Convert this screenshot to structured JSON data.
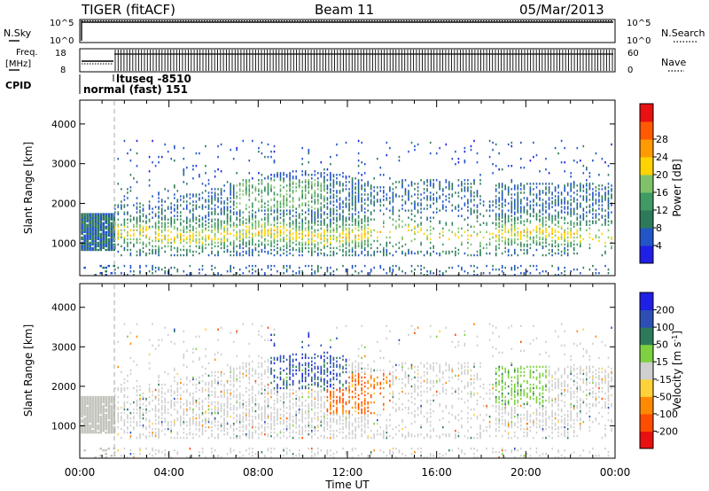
{
  "header": {
    "radar": "TIGER (fitACF)",
    "beam": "Beam 11",
    "date": "05/Mar/2013"
  },
  "panels": {
    "nsky": {
      "label": "N.Sky",
      "tick_top": "10^5",
      "tick_bottom": "10^0",
      "right_label": "N.Search",
      "right_tick_top": "10^5",
      "right_tick_bottom": "10^0"
    },
    "freq": {
      "label_line1": "Freq.",
      "label_line2": "[MHz]",
      "tick_top": "18",
      "tick_bottom": "8",
      "right_label": "Nave",
      "right_tick_top": "60",
      "right_tick_bottom": "0"
    },
    "cpid": {
      "label": "CPID",
      "program1": "normal (fast) 151",
      "program2": "ltuseq -8510"
    }
  },
  "colors": {
    "power_scale": [
      "#1f1fe6",
      "#2255c8",
      "#2d7a5a",
      "#3f9a63",
      "#7fc26a",
      "#ffd400",
      "#ff9a00",
      "#ff5a00",
      "#e81010"
    ],
    "velocity_scale": [
      "#1f1fe6",
      "#2d4fb5",
      "#2d7a5a",
      "#7dd040",
      "#cfcfcf",
      "#ffd23a",
      "#ff8a00",
      "#ff4d00",
      "#e81010"
    ]
  },
  "chart_data": [
    {
      "type": "heatmap",
      "title": "",
      "ylabel": "Slant Range [km]",
      "xlabel": "",
      "ylim": [
        180,
        4600
      ],
      "yticks": [
        "1000",
        "2000",
        "3000",
        "4000"
      ],
      "x_hours": [
        0,
        24
      ],
      "colorbar": {
        "label": "Power [dB]",
        "ticks": [
          "4",
          "8",
          "12",
          "16",
          "20",
          "24",
          "28"
        ],
        "range": [
          0,
          32
        ]
      }
    },
    {
      "type": "heatmap",
      "title": "",
      "ylabel": "Slant Range [km]",
      "xlabel": "Time UT",
      "ylim": [
        180,
        4600
      ],
      "yticks": [
        "1000",
        "2000",
        "3000",
        "4000"
      ],
      "xticks": [
        "00:00",
        "04:00",
        "08:00",
        "12:00",
        "16:00",
        "20:00",
        "00:00"
      ],
      "x_hours": [
        0,
        24
      ],
      "colorbar": {
        "label": "Velocity [m s⁻¹]",
        "ticks": [
          "200",
          "100",
          "50",
          "15",
          "-15",
          "-50",
          "-100",
          "-200"
        ],
        "range": [
          -250,
          250
        ]
      }
    }
  ]
}
